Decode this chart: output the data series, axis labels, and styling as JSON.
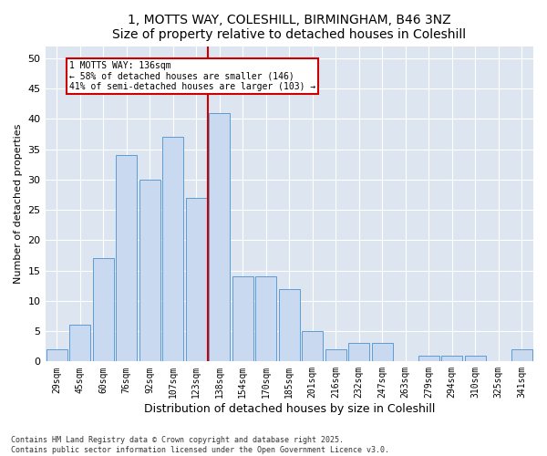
{
  "title": "1, MOTTS WAY, COLESHILL, BIRMINGHAM, B46 3NZ",
  "subtitle": "Size of property relative to detached houses in Coleshill",
  "xlabel": "Distribution of detached houses by size in Coleshill",
  "ylabel": "Number of detached properties",
  "categories": [
    "29sqm",
    "45sqm",
    "60sqm",
    "76sqm",
    "92sqm",
    "107sqm",
    "123sqm",
    "138sqm",
    "154sqm",
    "170sqm",
    "185sqm",
    "201sqm",
    "216sqm",
    "232sqm",
    "247sqm",
    "263sqm",
    "279sqm",
    "294sqm",
    "310sqm",
    "325sqm",
    "341sqm"
  ],
  "values": [
    2,
    6,
    17,
    34,
    30,
    37,
    27,
    41,
    14,
    14,
    12,
    5,
    2,
    3,
    3,
    0,
    1,
    1,
    1,
    0,
    2
  ],
  "bar_color": "#c9d9f0",
  "bar_edge_color": "#5b9bd5",
  "marker_index": 7,
  "marker_label": "1 MOTTS WAY: 136sqm",
  "annotation_line1": "← 58% of detached houses are smaller (146)",
  "annotation_line2": "41% of semi-detached houses are larger (103) →",
  "marker_color": "#cc0000",
  "ylim": [
    0,
    52
  ],
  "yticks": [
    0,
    5,
    10,
    15,
    20,
    25,
    30,
    35,
    40,
    45,
    50
  ],
  "footnote1": "Contains HM Land Registry data © Crown copyright and database right 2025.",
  "footnote2": "Contains public sector information licensed under the Open Government Licence v3.0.",
  "bg_color": "#dde5f0",
  "title_fontsize": 10,
  "subtitle_fontsize": 9,
  "ylabel_fontsize": 8,
  "xlabel_fontsize": 9
}
